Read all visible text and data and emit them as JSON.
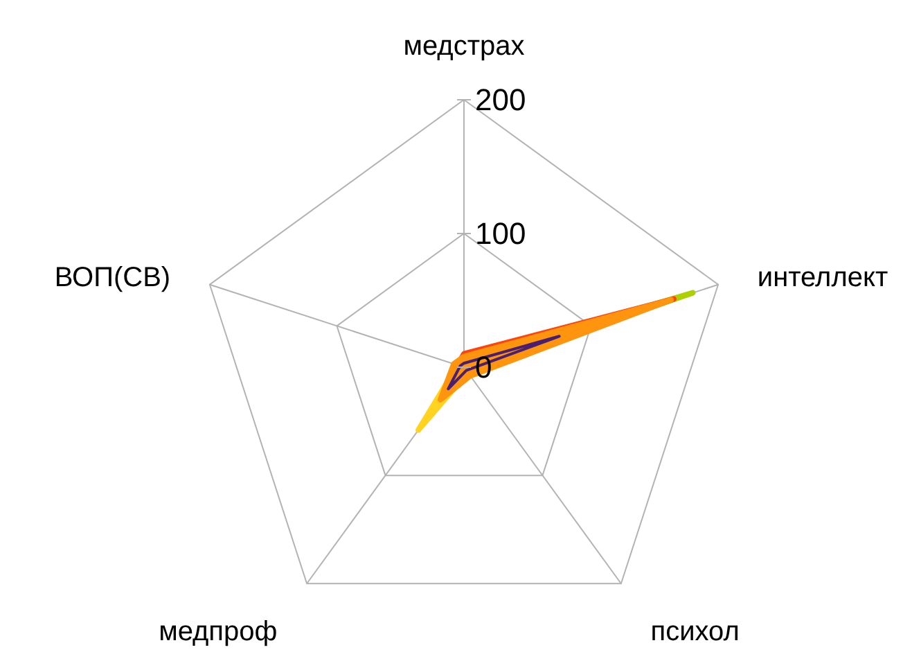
{
  "chart_data": {
    "type": "radar",
    "categories": [
      "медстрах",
      "интеллект",
      "психол",
      "медпроф",
      "ВОП(СВ)"
    ],
    "ylim": [
      0,
      200
    ],
    "yticks": [
      0,
      100,
      200
    ],
    "grid": true,
    "series": [
      {
        "color": "#ffd320",
        "values": [
          8,
          20,
          5,
          58,
          5
        ]
      },
      {
        "color": "#aecf00",
        "values": [
          5,
          180,
          3,
          25,
          5
        ]
      },
      {
        "color": "#ff420e",
        "values": [
          10,
          165,
          5,
          25,
          5
        ]
      },
      {
        "color": "#7e0021",
        "values": [
          5,
          150,
          5,
          27,
          5
        ]
      },
      {
        "type": "area",
        "color": "#ff950e",
        "values": [
          8,
          163,
          8,
          30,
          8
        ]
      },
      {
        "color": "#4b1f6f",
        "values": [
          3,
          75,
          3,
          20,
          3
        ]
      }
    ]
  }
}
